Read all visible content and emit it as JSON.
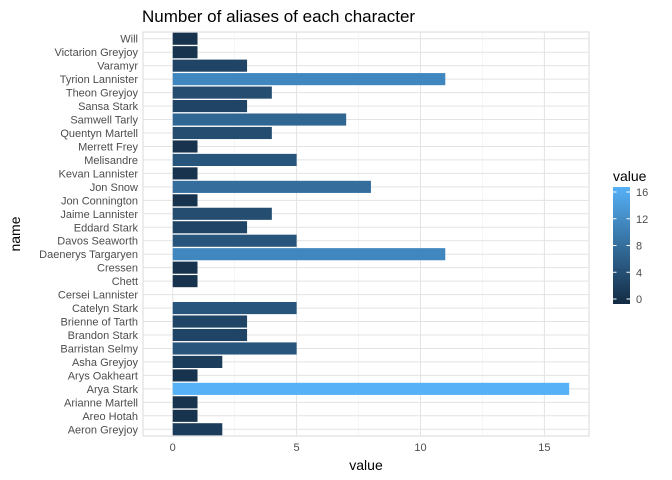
{
  "chart_data": {
    "type": "bar",
    "orientation": "horizontal",
    "title": "Number of aliases of each character",
    "xlabel": "value",
    "ylabel": "name",
    "xlim": [
      -1.2,
      16.8
    ],
    "xticks": [
      0,
      5,
      10,
      15
    ],
    "grid": true,
    "legend": {
      "title": "value",
      "placement": "right",
      "type": "colorbar",
      "ticks": [
        0,
        4,
        8,
        12,
        16
      ],
      "range": [
        0,
        16
      ],
      "low_color": "#132B43",
      "high_color": "#56B1F7"
    },
    "categories": [
      "Aeron Greyjoy",
      "Areo Hotah",
      "Arianne Martell",
      "Arya Stark",
      "Arys Oakheart",
      "Asha Greyjoy",
      "Barristan Selmy",
      "Brandon Stark",
      "Brienne of Tarth",
      "Catelyn Stark",
      "Cersei Lannister",
      "Chett",
      "Cressen",
      "Daenerys Targaryen",
      "Davos Seaworth",
      "Eddard Stark",
      "Jaime Lannister",
      "Jon Connington",
      "Jon Snow",
      "Kevan Lannister",
      "Melisandre",
      "Merrett Frey",
      "Quentyn Martell",
      "Samwell Tarly",
      "Sansa Stark",
      "Theon Greyjoy",
      "Tyrion Lannister",
      "Varamyr",
      "Victarion Greyjoy",
      "Will"
    ],
    "values": [
      2,
      1,
      1,
      16,
      1,
      2,
      5,
      3,
      3,
      5,
      0,
      1,
      1,
      11,
      5,
      3,
      4,
      1,
      8,
      1,
      5,
      1,
      4,
      7,
      3,
      4,
      11,
      3,
      1,
      1
    ]
  }
}
